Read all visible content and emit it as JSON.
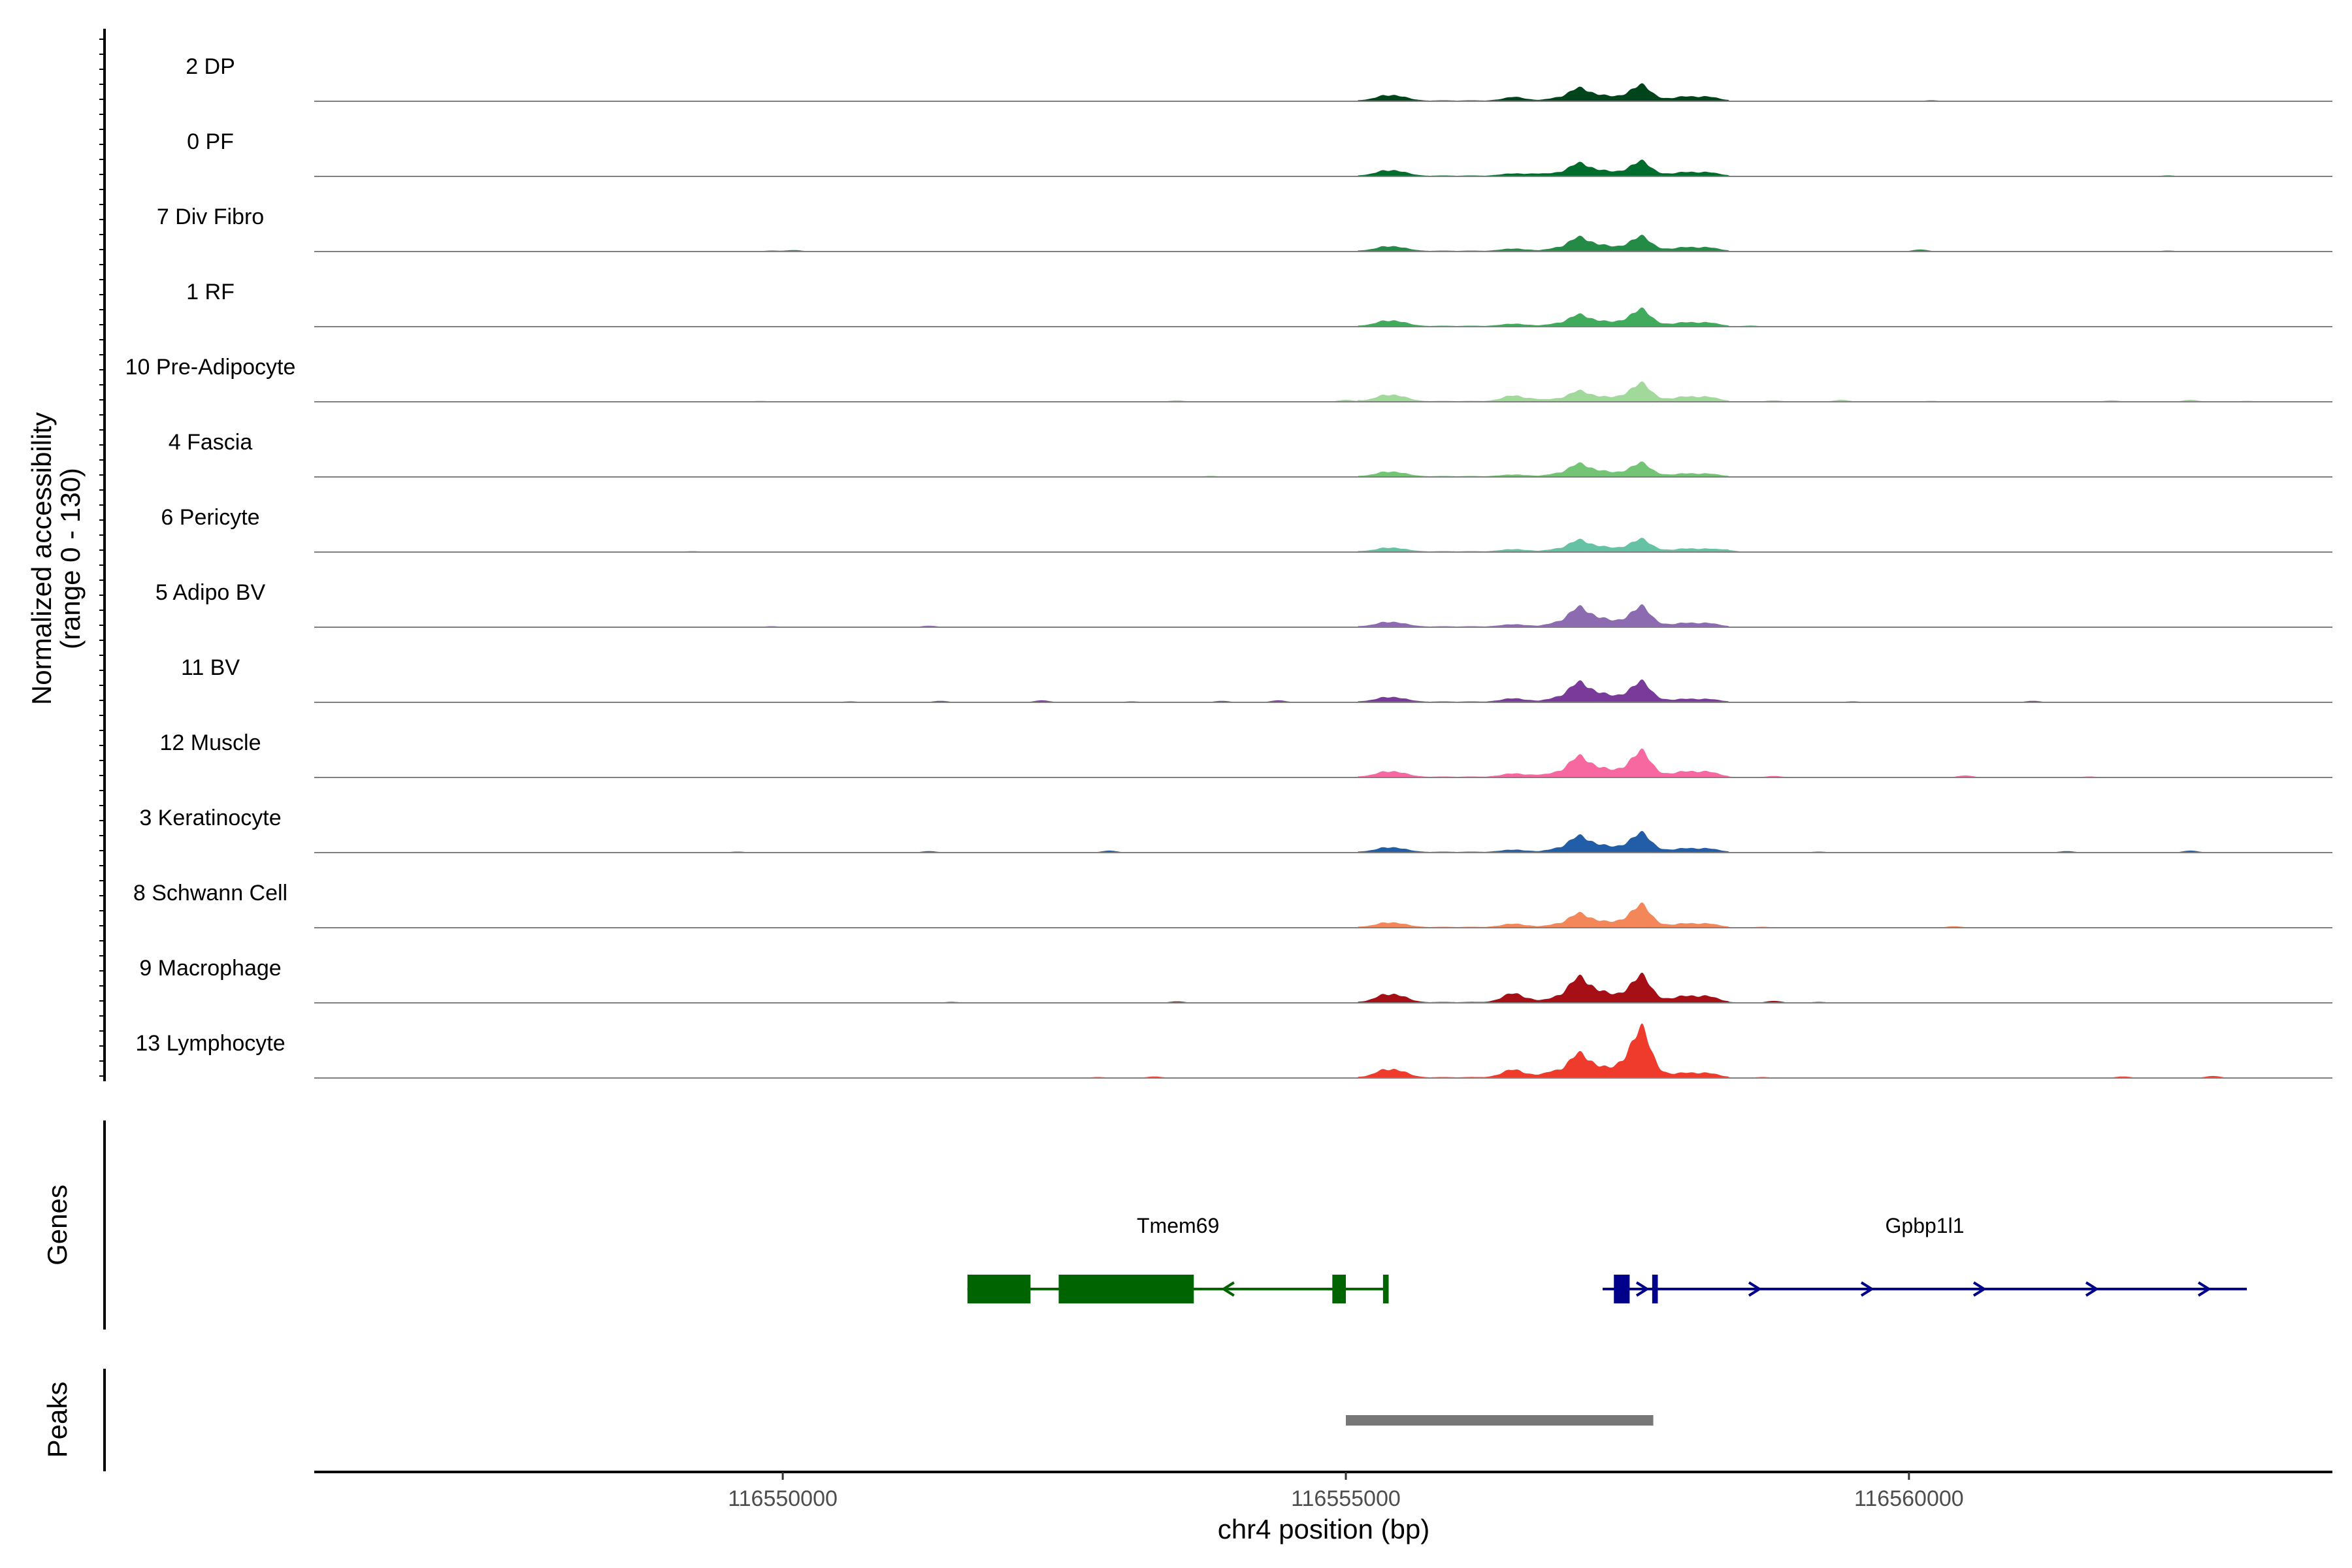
{
  "chart_data": {
    "type": "area",
    "coverage_ylabel_line1": "Normalized accessibility",
    "coverage_ylabel_line2": "(range 0 - 130)",
    "coverage_range": [
      0,
      130
    ],
    "genes_label": "Genes",
    "peaks_label": "Peaks",
    "xlabel": "chr4 position (bp)",
    "xlim": [
      116545840,
      116563760
    ],
    "x_ticks": [
      116550000,
      116555000,
      116560000
    ],
    "x_tick_labels": [
      "116550000",
      "116555000",
      "116560000"
    ],
    "peak_centers": [
      116555400,
      116556500,
      116557100,
      116557600,
      116558100
    ],
    "tracks": [
      {
        "name": "2 DP",
        "color": "#00441b",
        "peaks": [
          12,
          4,
          22,
          28,
          9
        ],
        "noise": [
          116560200,
          116556500
        ]
      },
      {
        "name": "0 PF",
        "color": "#006d2c",
        "peaks": [
          12,
          4,
          22,
          26,
          8
        ],
        "noise": [
          116562300,
          116556700
        ]
      },
      {
        "name": "7 Div Fibro",
        "color": "#238b45",
        "peaks": [
          10,
          4,
          24,
          26,
          8
        ],
        "noise": [
          116549900,
          116550100,
          116560100,
          116562300
        ]
      },
      {
        "name": "1 RF",
        "color": "#41ab5d",
        "peaks": [
          12,
          4,
          20,
          30,
          8
        ],
        "noise": [
          116558600
        ]
      },
      {
        "name": "10 Pre-Adipocyte",
        "color": "#a1d99b",
        "peaks": [
          14,
          10,
          18,
          32,
          10
        ],
        "noise": [
          116549800,
          116553500,
          116555000,
          116556700,
          116558800,
          116559400,
          116560200,
          116561800,
          116562500,
          116563000
        ]
      },
      {
        "name": "4 Fascia",
        "color": "#74c476",
        "peaks": [
          10,
          3,
          22,
          24,
          6
        ],
        "noise": [
          116553800
        ]
      },
      {
        "name": "6 Pericyte",
        "color": "#66c2a4",
        "peaks": [
          8,
          4,
          20,
          22,
          6
        ],
        "noise": [
          116549200,
          116558400
        ]
      },
      {
        "name": "5 Adipo BV",
        "color": "#8c6bb1",
        "peaks": [
          10,
          4,
          34,
          36,
          8
        ],
        "noise": [
          116549900,
          116551300
        ]
      },
      {
        "name": "11 BV",
        "color": "#7a3a9a",
        "peaks": [
          10,
          6,
          34,
          36,
          6
        ],
        "noise": [
          116550600,
          116551400,
          116552300,
          116553100,
          116553900,
          116554400,
          116559500,
          116561100
        ]
      },
      {
        "name": "12 Muscle",
        "color": "#f768a1",
        "peaks": [
          12,
          6,
          36,
          46,
          12
        ],
        "noise": [
          116556700,
          116558800,
          116560500,
          116561600
        ]
      },
      {
        "name": "3 Keratinocyte",
        "color": "#225ea8",
        "peaks": [
          10,
          4,
          28,
          34,
          8
        ],
        "noise": [
          116549600,
          116551300,
          116552900,
          116559200,
          116561400,
          116562500
        ]
      },
      {
        "name": "8 Schwann Cell",
        "color": "#f4875a",
        "peaks": [
          10,
          6,
          24,
          40,
          8
        ],
        "noise": [
          116558700,
          116560400
        ]
      },
      {
        "name": "9 Macrophage",
        "color": "#a50f15",
        "peaks": [
          18,
          16,
          44,
          48,
          14
        ],
        "noise": [
          116551500,
          116553500,
          116558800,
          116559200
        ]
      },
      {
        "name": "13 Lymphocyte",
        "color": "#ef3b2c",
        "peaks": [
          18,
          14,
          42,
          88,
          10
        ],
        "noise": [
          116552800,
          116553300,
          116556800,
          116558700,
          116561900,
          116562700
        ]
      }
    ],
    "genes": [
      {
        "name": "Tmem69",
        "strand": "-",
        "color": "#006400",
        "start": 116551640,
        "end": 116555380,
        "exons": [
          [
            116551640,
            116552200
          ],
          [
            116552450,
            116553650
          ],
          [
            116554880,
            116555000
          ],
          [
            116555330,
            116555380
          ]
        ]
      },
      {
        "name": "Gpbp1l1",
        "color": "#00008b",
        "strand": "+",
        "start": 116557280,
        "end": 116563000,
        "exons": [
          [
            116557380,
            116557520
          ],
          [
            116557720,
            116557770
          ]
        ]
      }
    ],
    "peak_regions": [
      [
        116555000,
        116557730
      ]
    ],
    "peak_color": "#777777"
  }
}
